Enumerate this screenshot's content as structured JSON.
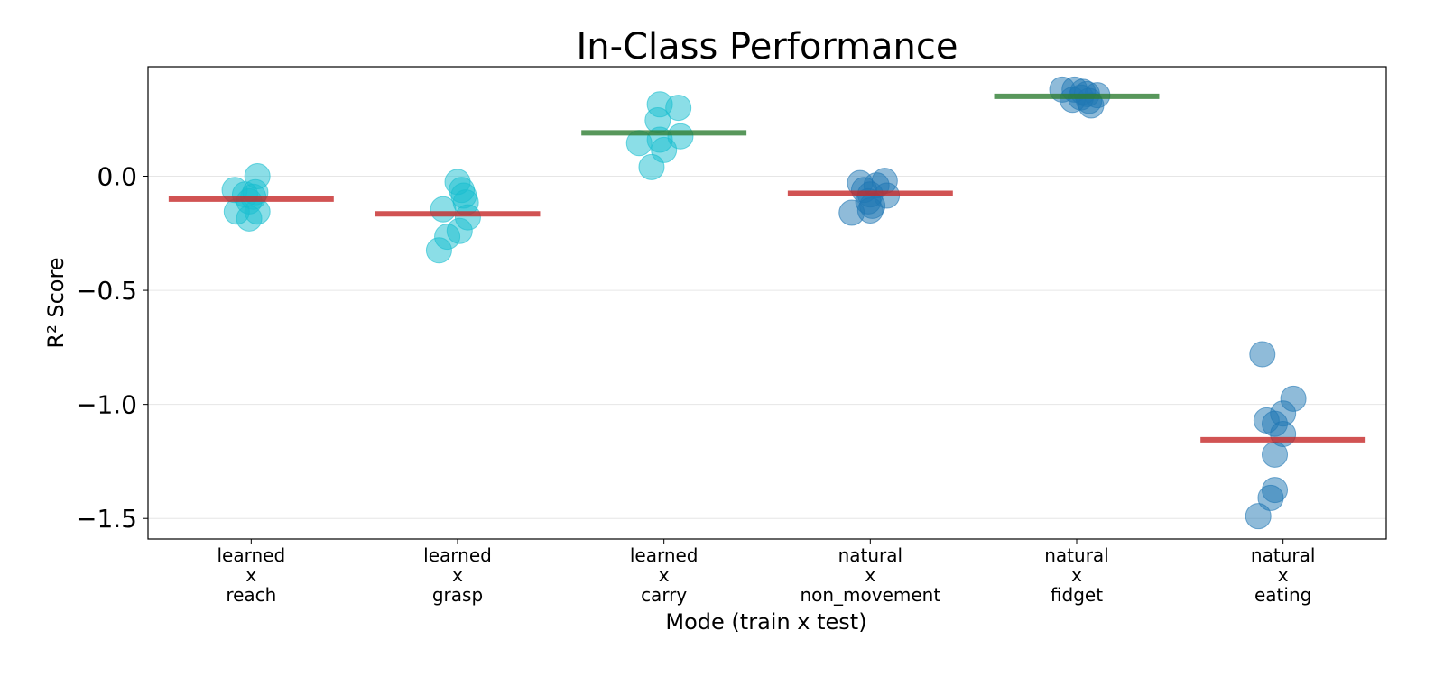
{
  "chart_data": {
    "type": "scatter",
    "title": "In-Class Performance",
    "xlabel": "Mode (train x test)",
    "ylabel": "R² Score",
    "ylim": [
      -1.59,
      0.48
    ],
    "yticks": [
      0.0,
      -0.5,
      -1.0,
      -1.5
    ],
    "ytick_labels": [
      "0.0",
      "−0.5",
      "−1.0",
      "−1.5"
    ],
    "grid": "horizontal",
    "legend": "none",
    "colors": {
      "learned_points": "#17becf",
      "natural_points": "#1f77b4",
      "mean_positive": "#2e7d32",
      "mean_negative": "#c62828"
    },
    "categories": [
      {
        "label_lines": [
          "learned",
          "x",
          "reach"
        ],
        "group": "learned",
        "mean": -0.1,
        "mean_sign": "negative",
        "points": [
          {
            "offset": -0.08,
            "y": -0.06
          },
          {
            "offset": -0.03,
            "y": -0.08
          },
          {
            "offset": 0.01,
            "y": -0.09
          },
          {
            "offset": 0.02,
            "y": -0.07
          },
          {
            "offset": -0.01,
            "y": -0.11
          },
          {
            "offset": 0.03,
            "y": 0.0
          },
          {
            "offset": -0.07,
            "y": -0.155
          },
          {
            "offset": 0.03,
            "y": -0.155
          },
          {
            "offset": -0.01,
            "y": -0.185
          }
        ]
      },
      {
        "label_lines": [
          "learned",
          "x",
          "grasp"
        ],
        "group": "learned",
        "mean": -0.165,
        "mean_sign": "negative",
        "points": [
          {
            "offset": 0.0,
            "y": -0.025
          },
          {
            "offset": 0.02,
            "y": -0.06
          },
          {
            "offset": 0.03,
            "y": -0.085
          },
          {
            "offset": 0.04,
            "y": -0.115
          },
          {
            "offset": -0.07,
            "y": -0.145
          },
          {
            "offset": 0.05,
            "y": -0.18
          },
          {
            "offset": 0.01,
            "y": -0.24
          },
          {
            "offset": -0.05,
            "y": -0.265
          },
          {
            "offset": -0.09,
            "y": -0.325
          }
        ]
      },
      {
        "label_lines": [
          "learned",
          "x",
          "carry"
        ],
        "group": "learned",
        "mean": 0.19,
        "mean_sign": "positive",
        "points": [
          {
            "offset": -0.02,
            "y": 0.315
          },
          {
            "offset": 0.07,
            "y": 0.3
          },
          {
            "offset": -0.03,
            "y": 0.245
          },
          {
            "offset": 0.08,
            "y": 0.175
          },
          {
            "offset": -0.02,
            "y": 0.16
          },
          {
            "offset": -0.12,
            "y": 0.145
          },
          {
            "offset": 0.0,
            "y": 0.115
          },
          {
            "offset": -0.06,
            "y": 0.04
          }
        ]
      },
      {
        "label_lines": [
          "natural",
          "x",
          "non_movement"
        ],
        "group": "natural",
        "mean": -0.075,
        "mean_sign": "negative",
        "points": [
          {
            "offset": -0.05,
            "y": -0.03
          },
          {
            "offset": 0.07,
            "y": -0.02
          },
          {
            "offset": 0.03,
            "y": -0.04
          },
          {
            "offset": -0.03,
            "y": -0.06
          },
          {
            "offset": 0.0,
            "y": -0.08
          },
          {
            "offset": 0.08,
            "y": -0.085
          },
          {
            "offset": -0.01,
            "y": -0.11
          },
          {
            "offset": 0.01,
            "y": -0.13
          },
          {
            "offset": -0.09,
            "y": -0.16
          },
          {
            "offset": 0.0,
            "y": -0.15
          }
        ]
      },
      {
        "label_lines": [
          "natural",
          "x",
          "fidget"
        ],
        "group": "natural",
        "mean": 0.35,
        "mean_sign": "positive",
        "points": [
          {
            "offset": -0.07,
            "y": 0.38
          },
          {
            "offset": -0.01,
            "y": 0.38
          },
          {
            "offset": 0.03,
            "y": 0.37
          },
          {
            "offset": 0.05,
            "y": 0.36
          },
          {
            "offset": 0.1,
            "y": 0.355
          },
          {
            "offset": 0.02,
            "y": 0.345
          },
          {
            "offset": -0.02,
            "y": 0.335
          },
          {
            "offset": 0.06,
            "y": 0.33
          },
          {
            "offset": 0.07,
            "y": 0.31
          }
        ]
      },
      {
        "label_lines": [
          "natural",
          "x",
          "eating"
        ],
        "group": "natural",
        "mean": -1.155,
        "mean_sign": "negative",
        "points": [
          {
            "offset": -0.1,
            "y": -0.78
          },
          {
            "offset": 0.05,
            "y": -0.975
          },
          {
            "offset": 0.0,
            "y": -1.04
          },
          {
            "offset": -0.08,
            "y": -1.07
          },
          {
            "offset": -0.04,
            "y": -1.085
          },
          {
            "offset": 0.0,
            "y": -1.13
          },
          {
            "offset": -0.04,
            "y": -1.22
          },
          {
            "offset": -0.04,
            "y": -1.375
          },
          {
            "offset": -0.06,
            "y": -1.41
          },
          {
            "offset": -0.12,
            "y": -1.49
          }
        ]
      }
    ]
  }
}
